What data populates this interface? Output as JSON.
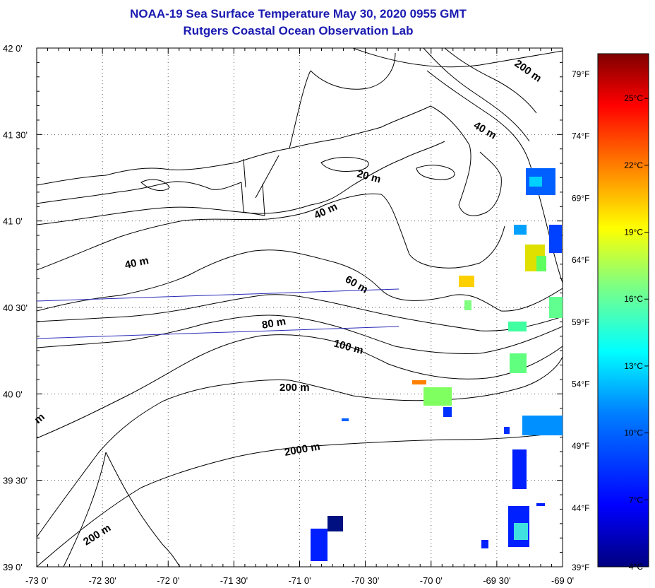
{
  "title": "NOAA-19 Sea Surface Temperature May 30, 2020 0955 GMT",
  "subtitle": "Rutgers Coastal Ocean Observation Lab",
  "map": {
    "lon_ticks": [
      "-73 0'",
      "-72 30'",
      "-72 0'",
      "-71 30'",
      "-71 0'",
      "-70 30'",
      "-70 0'",
      "-69 30'",
      "-69 0'"
    ],
    "lat_ticks": [
      "42 0'",
      "41 30'",
      "41 0'",
      "40 30'",
      "40 0'",
      "39 30'",
      "39 0'"
    ],
    "lon_range": [
      -73,
      -69
    ],
    "lat_range": [
      39,
      42
    ],
    "grid": "dotted",
    "depth_labels": [
      "200 m",
      "40 m",
      "20 m",
      "40 m",
      "40 m",
      "60 m",
      "80 m",
      "100 m",
      "200 m",
      "2000 m",
      "200 m",
      "m"
    ]
  },
  "colorbar": {
    "celsius_labels": [
      "25°C",
      "22°C",
      "19°C",
      "16°C",
      "13°C",
      "10°C",
      "7°C",
      "4°C"
    ],
    "fahrenheit_labels": [
      "79°F",
      "74°F",
      "69°F",
      "64°F",
      "59°F",
      "54°F",
      "49°F",
      "44°F",
      "39°F"
    ],
    "min_c": 4,
    "max_c": 27,
    "colors": [
      "#00007f",
      "#0000ff",
      "#0080ff",
      "#00ffff",
      "#80ff80",
      "#ffff00",
      "#ff8000",
      "#ff0000",
      "#7f0000"
    ]
  },
  "colors": {
    "title": "#1a1ab0",
    "transect": "#2a2ab8",
    "contour": "#000000"
  }
}
